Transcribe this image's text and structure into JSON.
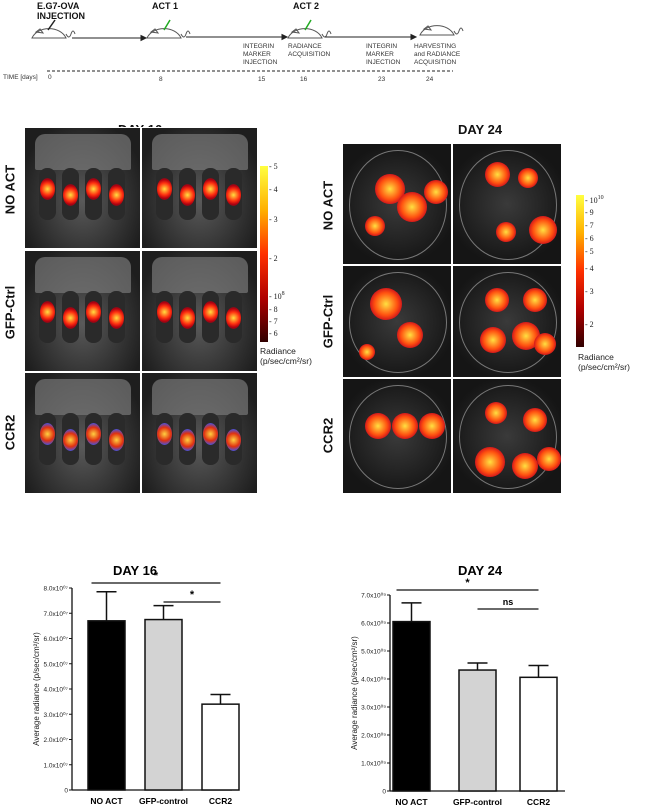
{
  "timeline": {
    "events": [
      {
        "label": "E.G7-OVA INJECTION"
      },
      {
        "label": "ACT 1"
      },
      {
        "label": "ACT 2"
      }
    ],
    "notes": [
      {
        "label": "INTEGRIN MARKER INJECTION"
      },
      {
        "label": "RADIANCE ACQUISITION"
      },
      {
        "label": "INTEGRIN MARKER INJECTION"
      },
      {
        "label": "HARVESTING and RADIANCE ACQUISITION"
      }
    ],
    "axis_label": "TIME [days]",
    "days": [
      "0",
      "8",
      "15",
      "16",
      "23",
      "24"
    ]
  },
  "imaging": {
    "day16": {
      "title": "DAY 16",
      "rows": [
        "NO ACT",
        "GFP-Ctrl",
        "CCR2"
      ],
      "colorbar_ticks": [
        "5",
        "4",
        "3",
        "2",
        "10",
        "8",
        "7",
        "6"
      ],
      "colorbar_exponent": "8",
      "colorbar_label": "Radiance",
      "colorbar_units": "(p/sec/cm²/sr)"
    },
    "day24": {
      "title": "DAY 24",
      "rows": [
        "NO ACT",
        "GFP-Ctrl",
        "CCR2"
      ],
      "colorbar_ticks": [
        "10",
        "9",
        "7",
        "6",
        "5",
        "4",
        "3",
        "2"
      ],
      "colorbar_exponent": "10",
      "colorbar_label": "Radiance",
      "colorbar_units": "(p/sec/cm²/sr)"
    }
  },
  "chart_data": [
    {
      "type": "bar",
      "title": "DAY 16",
      "categories": [
        "NO ACT",
        "GFP-control",
        "CCR2"
      ],
      "values": [
        67000000.0,
        67500000.0,
        34000000.0
      ],
      "errors": [
        11500000.0,
        5500000.0,
        3800000.0
      ],
      "colors": [
        "#000000",
        "#d3d3d3",
        "#ffffff"
      ],
      "ylabel": "Average radiance (p/sec/cm²/sr)",
      "ylim": [
        0,
        80000000.0
      ],
      "yticks": [
        "0",
        "1.0x10⁰⁷",
        "2.0x10⁰⁷",
        "3.0x10⁰⁷",
        "4.0x10⁰⁷",
        "5.0x10⁰⁷",
        "6.0x10⁰⁷",
        "7.0x10⁰⁷",
        "8.0x10⁰⁷"
      ],
      "significance": [
        {
          "from": "NO ACT",
          "to": "CCR2",
          "label": "*"
        },
        {
          "from": "GFP-control",
          "to": "CCR2",
          "label": "*"
        }
      ]
    },
    {
      "type": "bar",
      "title": "DAY 24",
      "categories": [
        "NO ACT",
        "GFP-control",
        "CCR2"
      ],
      "values": [
        6050000000.0,
        4320000000.0,
        4060000000.0
      ],
      "errors": [
        670000000.0,
        250000000.0,
        420000000.0
      ],
      "colors": [
        "#000000",
        "#d3d3d3",
        "#ffffff"
      ],
      "ylabel": "Average radiance (p/sec/cm²/sr)",
      "ylim": [
        0,
        7000000000.0
      ],
      "yticks": [
        "0",
        "1.0x10⁰⁹",
        "2.0x10⁰⁹",
        "3.0x10⁰⁹",
        "4.0x10⁰⁹",
        "5.0x10⁰⁹",
        "6.0x10⁰⁹",
        "7.0x10⁰⁹"
      ],
      "significance": [
        {
          "from": "NO ACT",
          "to": "CCR2",
          "label": "*"
        },
        {
          "from": "GFP-control",
          "to": "CCR2",
          "label": "ns"
        }
      ]
    }
  ]
}
